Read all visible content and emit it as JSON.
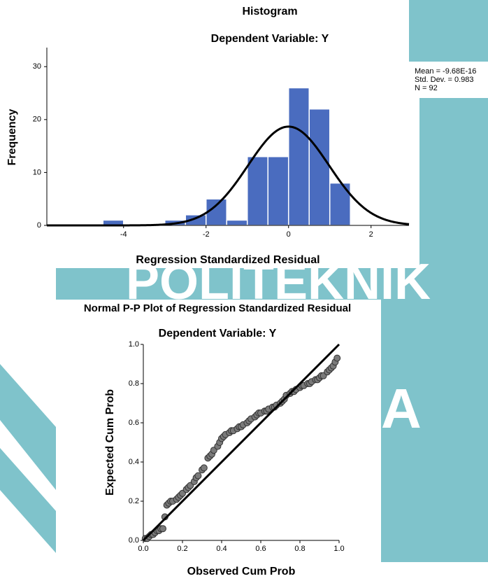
{
  "watermark": {
    "text": "POLITEKNIK",
    "letter": "A"
  },
  "chart_data": [
    {
      "type": "histogram",
      "title": "Histogram",
      "subtitle": "Dependent Variable: Y",
      "x_label": "Regression Standardized Residual",
      "y_label": "Frequency",
      "bins": [
        -4.5,
        -4,
        -3.5,
        -3,
        -2.5,
        -2,
        -1.5,
        -1,
        -0.5,
        0,
        0.5,
        1,
        1.5
      ],
      "values": [
        1,
        0,
        0,
        1,
        2,
        5,
        1,
        13,
        13,
        26,
        22,
        8
      ],
      "color": "#4a6cbf",
      "xlim": [
        -5.86,
        2.92
      ],
      "ylim": [
        0,
        33.6
      ],
      "xticks": [
        -4,
        -2,
        0,
        2
      ],
      "yticks": [
        0,
        10,
        20,
        30
      ],
      "stats": [
        {
          "value": -9.68e-16,
          "label": "Mean = -9.68E-16"
        },
        {
          "value": 0.983,
          "label": "Std. Dev. = 0.983"
        },
        {
          "value": 92,
          "label": "N = 92"
        }
      ]
    },
    {
      "type": "scatter",
      "title": "Normal P-P Plot of Regression Standardized Residual",
      "subtitle": "Dependent Variable: Y",
      "x_label": "Observed Cum Prob",
      "y_label": "Expected Cum Prob",
      "x": [
        0.01,
        0.02,
        0.03,
        0.04,
        0.05,
        0.06,
        0.07,
        0.08,
        0.09,
        0.1,
        0.11,
        0.12,
        0.13,
        0.14,
        0.15,
        0.17,
        0.18,
        0.19,
        0.2,
        0.22,
        0.23,
        0.24,
        0.26,
        0.27,
        0.28,
        0.3,
        0.31,
        0.33,
        0.34,
        0.35,
        0.36,
        0.38,
        0.39,
        0.4,
        0.41,
        0.42,
        0.44,
        0.45,
        0.46,
        0.48,
        0.49,
        0.5,
        0.51,
        0.53,
        0.54,
        0.55,
        0.57,
        0.58,
        0.59,
        0.6,
        0.62,
        0.63,
        0.64,
        0.66,
        0.67,
        0.68,
        0.7,
        0.71,
        0.72,
        0.73,
        0.75,
        0.76,
        0.77,
        0.78,
        0.8,
        0.81,
        0.82,
        0.84,
        0.85,
        0.86,
        0.88,
        0.89,
        0.9,
        0.91,
        0.92,
        0.94,
        0.95,
        0.96,
        0.97,
        0.98,
        0.99
      ],
      "values": [
        0.01,
        0.01,
        0.02,
        0.03,
        0.03,
        0.04,
        0.05,
        0.05,
        0.06,
        0.06,
        0.12,
        0.18,
        0.19,
        0.2,
        0.2,
        0.21,
        0.22,
        0.23,
        0.24,
        0.26,
        0.27,
        0.28,
        0.3,
        0.32,
        0.33,
        0.36,
        0.37,
        0.42,
        0.43,
        0.44,
        0.46,
        0.48,
        0.5,
        0.52,
        0.53,
        0.54,
        0.55,
        0.56,
        0.56,
        0.57,
        0.58,
        0.58,
        0.59,
        0.6,
        0.61,
        0.62,
        0.63,
        0.64,
        0.65,
        0.65,
        0.66,
        0.66,
        0.67,
        0.68,
        0.68,
        0.69,
        0.7,
        0.71,
        0.72,
        0.74,
        0.75,
        0.76,
        0.76,
        0.77,
        0.78,
        0.79,
        0.79,
        0.8,
        0.8,
        0.81,
        0.82,
        0.82,
        0.83,
        0.84,
        0.84,
        0.86,
        0.87,
        0.88,
        0.89,
        0.91,
        0.93
      ],
      "color": "#7a7a7a",
      "xlim": [
        0,
        1
      ],
      "ylim": [
        0,
        1
      ],
      "xticks": [
        {
          "value": 0,
          "label": "0.0"
        },
        0.2,
        0.4,
        0.6,
        0.8,
        {
          "value": 1,
          "label": "1.0"
        }
      ],
      "yticks": [
        {
          "value": 0,
          "label": "0.0"
        },
        0.2,
        0.4,
        0.6,
        0.8,
        {
          "value": 1,
          "label": "1.0"
        }
      ]
    }
  ]
}
